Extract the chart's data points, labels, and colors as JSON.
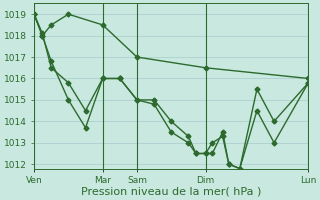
{
  "background_color": "#c8e8e0",
  "grid_color": "#a8cccc",
  "line_color": "#2d6a2d",
  "marker": "D",
  "markersize": 2.5,
  "linewidth": 1.0,
  "xlabel": "Pression niveau de la mer( hPa )",
  "xlabel_fontsize": 8,
  "tick_fontsize": 6.5,
  "ylim": [
    1011.8,
    1019.5
  ],
  "yticks": [
    1012,
    1013,
    1014,
    1015,
    1016,
    1017,
    1018,
    1019
  ],
  "xtick_labels": [
    "Ven",
    "Mar",
    "Sam",
    "Dim",
    "Lun"
  ],
  "vline_positions": [
    0.0,
    0.25,
    0.375,
    0.625,
    1.0
  ],
  "series1_x": [
    0.0,
    0.03,
    0.0625,
    0.125,
    0.25,
    0.375,
    0.625,
    1.0
  ],
  "series1_y": [
    1019.0,
    1018.0,
    1018.5,
    1019.0,
    1018.5,
    1017.0,
    1016.5,
    1016.0
  ],
  "series2_x": [
    0.0,
    0.03,
    0.0625,
    0.125,
    0.1875,
    0.25,
    0.3125,
    0.375,
    0.4375,
    0.5,
    0.5625,
    0.59,
    0.625,
    0.65,
    0.6875,
    0.71,
    0.75,
    0.8125,
    0.875,
    1.0
  ],
  "series2_y": [
    1019.0,
    1018.0,
    1016.8,
    1015.0,
    1013.7,
    1016.0,
    1016.0,
    1015.0,
    1015.0,
    1014.0,
    1013.3,
    1012.5,
    1012.5,
    1013.0,
    1013.3,
    1012.0,
    1011.8,
    1015.5,
    1014.0,
    1015.8
  ],
  "series3_x": [
    0.0,
    0.03,
    0.0625,
    0.125,
    0.1875,
    0.25,
    0.3125,
    0.375,
    0.4375,
    0.5,
    0.5625,
    0.59,
    0.625,
    0.65,
    0.6875,
    0.71,
    0.75,
    0.8125,
    0.875,
    1.0
  ],
  "series3_y": [
    1019.0,
    1018.1,
    1016.5,
    1015.8,
    1014.5,
    1016.0,
    1016.0,
    1015.0,
    1014.8,
    1013.5,
    1013.0,
    1012.5,
    1012.5,
    1012.5,
    1013.5,
    1012.0,
    1011.8,
    1014.5,
    1013.0,
    1015.8
  ]
}
